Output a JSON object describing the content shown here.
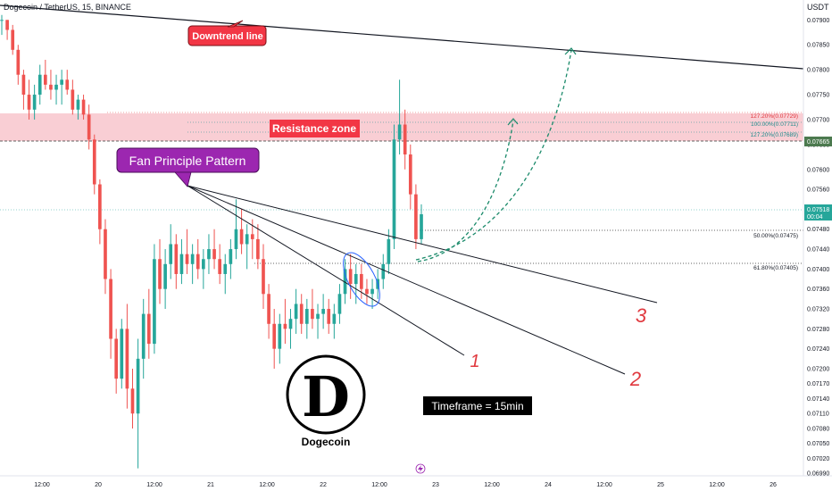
{
  "header": {
    "symbol_line": "Dogecoin / TetherUS, 15, BINANCE",
    "currency": "USDT"
  },
  "colors": {
    "up": "#26a69a",
    "down": "#ef5350",
    "resistance_fill": "#f8c6cc",
    "callout_red": "#f23645",
    "callout_purple": "#9c27b0",
    "current_price_bg": "#26a69a",
    "resistance_price_bg": "#4c7a4f"
  },
  "annotations": {
    "downtrend_label": "Downtrend line",
    "resistance_label": "Resistance zone",
    "fan_label": "Fan Principle Pattern",
    "fan_line_1": "1",
    "fan_line_2": "2",
    "fan_line_3": "3",
    "timeframe_label": "Timeframe = 15min",
    "logo_letter": "D",
    "logo_caption": "Dogecoin"
  },
  "price_tags": {
    "current_price": "0.07518",
    "countdown": "00:04",
    "resistance_price": "0.07665"
  },
  "chart_data": {
    "type": "candlestick",
    "ylim": [
      0.06985,
      0.0794
    ],
    "y_ticks": [
      "0.07900",
      "0.07850",
      "0.07800",
      "0.07750",
      "0.07700",
      "0.07650",
      "0.07600",
      "0.07560",
      "0.07520",
      "0.07480",
      "0.07440",
      "0.07400",
      "0.07360",
      "0.07320",
      "0.07280",
      "0.07240",
      "0.07200",
      "0.07170",
      "0.07140",
      "0.07110",
      "0.07080",
      "0.07050",
      "0.07020",
      "0.06990"
    ],
    "x_ticks": [
      "12:00",
      "20",
      "12:00",
      "21",
      "12:00",
      "22",
      "12:00",
      "23",
      "12:00",
      "24",
      "12:00",
      "25",
      "12:00",
      "26"
    ],
    "fib_levels": [
      {
        "label": "127.20%(0.07729)",
        "value": 0.07729,
        "style": "red"
      },
      {
        "label": "100.00%(0.07711)",
        "value": 0.07711,
        "style": "teal"
      },
      {
        "label": "127.20%(0.07689)",
        "value": 0.07689,
        "style": "teal"
      },
      {
        "label": "50.00%(0.07475)",
        "value": 0.07475,
        "style": "plain"
      },
      {
        "label": "61.80%(0.07405)",
        "value": 0.07405,
        "style": "plain"
      }
    ],
    "resistance_zone": [
      0.07665,
      0.0773
    ],
    "last_price": 0.07518,
    "candles": [
      [
        0.079,
        0.0791,
        0.0787,
        0.079
      ],
      [
        0.079,
        0.079,
        0.0786,
        0.0788
      ],
      [
        0.0788,
        0.0789,
        0.0783,
        0.0784
      ],
      [
        0.0784,
        0.0785,
        0.0777,
        0.0779
      ],
      [
        0.0779,
        0.078,
        0.0772,
        0.0775
      ],
      [
        0.0775,
        0.0778,
        0.077,
        0.0772
      ],
      [
        0.0772,
        0.0777,
        0.077,
        0.0775
      ],
      [
        0.0775,
        0.0781,
        0.0773,
        0.0779
      ],
      [
        0.0779,
        0.0782,
        0.0776,
        0.0777
      ],
      [
        0.0777,
        0.078,
        0.0774,
        0.0776
      ],
      [
        0.0776,
        0.0779,
        0.0773,
        0.0777
      ],
      [
        0.0777,
        0.078,
        0.0773,
        0.0778
      ],
      [
        0.0778,
        0.078,
        0.0775,
        0.0776
      ],
      [
        0.0776,
        0.0778,
        0.0771,
        0.0772
      ],
      [
        0.0772,
        0.0775,
        0.077,
        0.0774
      ],
      [
        0.0774,
        0.0775,
        0.077,
        0.0771
      ],
      [
        0.0771,
        0.0773,
        0.0764,
        0.0766
      ],
      [
        0.0766,
        0.0767,
        0.0755,
        0.0757
      ],
      [
        0.0757,
        0.0758,
        0.0745,
        0.0748
      ],
      [
        0.0748,
        0.075,
        0.0735,
        0.0738
      ],
      [
        0.0738,
        0.074,
        0.0722,
        0.0726
      ],
      [
        0.0726,
        0.0728,
        0.0715,
        0.0718
      ],
      [
        0.0718,
        0.073,
        0.0716,
        0.0728
      ],
      [
        0.0728,
        0.0733,
        0.0712,
        0.0716
      ],
      [
        0.0716,
        0.072,
        0.0708,
        0.0711
      ],
      [
        0.0711,
        0.0726,
        0.07,
        0.0722
      ],
      [
        0.0722,
        0.0734,
        0.0718,
        0.0731
      ],
      [
        0.0731,
        0.0736,
        0.0722,
        0.0725
      ],
      [
        0.0725,
        0.0745,
        0.0723,
        0.0742
      ],
      [
        0.0742,
        0.0746,
        0.0733,
        0.0736
      ],
      [
        0.0736,
        0.0744,
        0.0732,
        0.0741
      ],
      [
        0.0741,
        0.0749,
        0.0738,
        0.0745
      ],
      [
        0.0745,
        0.0747,
        0.0736,
        0.0739
      ],
      [
        0.0739,
        0.0746,
        0.0737,
        0.0743
      ],
      [
        0.0743,
        0.0748,
        0.0739,
        0.0741
      ],
      [
        0.0741,
        0.0745,
        0.0737,
        0.0743
      ],
      [
        0.0743,
        0.0746,
        0.0738,
        0.074
      ],
      [
        0.074,
        0.0744,
        0.0736,
        0.0742
      ],
      [
        0.0742,
        0.0747,
        0.0739,
        0.0744
      ],
      [
        0.0744,
        0.0748,
        0.074,
        0.0742
      ],
      [
        0.0742,
        0.0745,
        0.0737,
        0.0739
      ],
      [
        0.0739,
        0.0743,
        0.0735,
        0.0741
      ],
      [
        0.0741,
        0.0746,
        0.0738,
        0.0744
      ],
      [
        0.0744,
        0.0754,
        0.0742,
        0.0748
      ],
      [
        0.0748,
        0.0752,
        0.0743,
        0.0745
      ],
      [
        0.0745,
        0.0749,
        0.074,
        0.0747
      ],
      [
        0.0747,
        0.075,
        0.0742,
        0.0746
      ],
      [
        0.0746,
        0.0749,
        0.074,
        0.0742
      ],
      [
        0.0742,
        0.0745,
        0.0732,
        0.0735
      ],
      [
        0.0735,
        0.0737,
        0.0726,
        0.0729
      ],
      [
        0.0729,
        0.0732,
        0.072,
        0.0724
      ],
      [
        0.0724,
        0.0731,
        0.0721,
        0.0729
      ],
      [
        0.0729,
        0.0734,
        0.0725,
        0.0728
      ],
      [
        0.0728,
        0.0732,
        0.0724,
        0.073
      ],
      [
        0.073,
        0.0736,
        0.0727,
        0.0733
      ],
      [
        0.0733,
        0.0735,
        0.0727,
        0.0729
      ],
      [
        0.0729,
        0.0734,
        0.0726,
        0.0732
      ],
      [
        0.0732,
        0.0736,
        0.0728,
        0.073
      ],
      [
        0.073,
        0.0733,
        0.0726,
        0.0731
      ],
      [
        0.0731,
        0.0735,
        0.0728,
        0.0732
      ],
      [
        0.0732,
        0.0734,
        0.0727,
        0.0729
      ],
      [
        0.0729,
        0.0733,
        0.0726,
        0.0731
      ],
      [
        0.0731,
        0.0737,
        0.0729,
        0.0735
      ],
      [
        0.0735,
        0.0742,
        0.0733,
        0.074
      ],
      [
        0.074,
        0.0743,
        0.0734,
        0.0737
      ],
      [
        0.0737,
        0.0741,
        0.0733,
        0.0739
      ],
      [
        0.0739,
        0.0741,
        0.0734,
        0.0736
      ],
      [
        0.0736,
        0.0738,
        0.0733,
        0.0735
      ],
      [
        0.0735,
        0.0738,
        0.0732,
        0.0736
      ],
      [
        0.0736,
        0.074,
        0.0734,
        0.0738
      ],
      [
        0.0738,
        0.0743,
        0.0736,
        0.0741
      ],
      [
        0.0741,
        0.0748,
        0.0739,
        0.0746
      ],
      [
        0.0746,
        0.0769,
        0.0744,
        0.0766
      ],
      [
        0.0766,
        0.0778,
        0.0763,
        0.0769
      ],
      [
        0.0769,
        0.0772,
        0.076,
        0.0763
      ],
      [
        0.0763,
        0.0765,
        0.0752,
        0.0755
      ],
      [
        0.0755,
        0.0757,
        0.0744,
        0.0746
      ],
      [
        0.0746,
        0.0753,
        0.0745,
        0.0751
      ]
    ]
  }
}
